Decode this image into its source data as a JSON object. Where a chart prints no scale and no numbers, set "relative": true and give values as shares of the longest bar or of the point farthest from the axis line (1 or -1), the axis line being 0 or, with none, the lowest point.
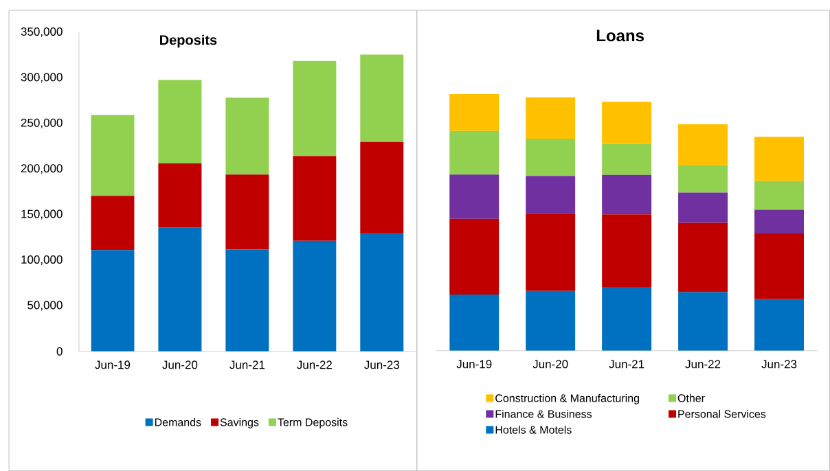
{
  "chart_data": [
    {
      "type": "bar",
      "title": "Deposits",
      "stacked": true,
      "categories": [
        "Jun-19",
        "Jun-20",
        "Jun-21",
        "Jun-22",
        "Jun-23"
      ],
      "series": [
        {
          "name": "Demands",
          "color": "#0070c0",
          "values": [
            111000,
            136000,
            111600,
            121200,
            128800
          ]
        },
        {
          "name": "Savings",
          "color": "#c00000",
          "values": [
            59600,
            70100,
            82300,
            93000,
            100900
          ]
        },
        {
          "name": "Term Deposits",
          "color": "#92d050",
          "values": [
            88700,
            91600,
            84300,
            104400,
            95900
          ]
        }
      ],
      "ylim": [
        0,
        350000
      ],
      "yticks": [
        0,
        {
          "value": 50000,
          "label": "50,000"
        },
        {
          "value": 100000,
          "label": "100,000"
        },
        {
          "value": 150000,
          "label": "150,000"
        },
        {
          "value": 200000,
          "label": "200,000"
        },
        {
          "value": 250000,
          "label": "250,000"
        },
        {
          "value": 300000,
          "label": "300,000"
        },
        {
          "value": 350000,
          "label": "350,000"
        }
      ],
      "grid": false,
      "legend": "bottom"
    },
    {
      "type": "bar",
      "title": "Loans",
      "stacked": true,
      "relative": true,
      "categories": [
        "Jun-19",
        "Jun-20",
        "Jun-21",
        "Jun-22",
        "Jun-23"
      ],
      "series": [
        {
          "name": "Hotels & Motels",
          "color": "#0070c0",
          "values": [
            0.219,
            0.233,
            0.248,
            0.228,
            0.201
          ]
        },
        {
          "name": "Personal Services",
          "color": "#c00000",
          "values": [
            0.295,
            0.303,
            0.283,
            0.27,
            0.256
          ]
        },
        {
          "name": "Finance & Business",
          "color": "#7030a0",
          "values": [
            0.172,
            0.145,
            0.154,
            0.118,
            0.092
          ]
        },
        {
          "name": "Other",
          "color": "#92d050",
          "values": [
            0.17,
            0.145,
            0.121,
            0.106,
            0.112
          ]
        },
        {
          "name": "Construction & Manufacturing",
          "color": "#ffc000",
          "values": [
            0.144,
            0.161,
            0.164,
            0.16,
            0.172
          ]
        }
      ],
      "grid": false,
      "legend": "bottom"
    }
  ]
}
